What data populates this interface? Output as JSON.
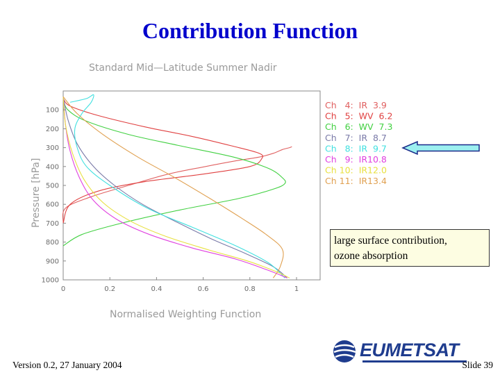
{
  "slide": {
    "title": "Contribution Function",
    "annotation_lines": [
      "large surface contribution,",
      "ozone absorption"
    ],
    "footer_version": "Version 0.2, 27 January 2004",
    "footer_slide": "Slide 39",
    "logo_text": "EUMETSAT",
    "colors": {
      "title": "#0000cc",
      "arrow_fill": "#9cf0f0",
      "arrow_stroke": "#1a2a8a",
      "annotation_bg": "#fdfde2"
    }
  },
  "chart_data": {
    "type": "line",
    "title": "Standard Mid—Latitude Summer Nadir",
    "xlabel": "Normalised Weighting Function",
    "ylabel": "Pressure [hPa]",
    "xlim": [
      0,
      1
    ],
    "ylim": [
      1000,
      0
    ],
    "x_ticks": [
      "0",
      "0.2",
      "0.4",
      "0.6",
      "0.8",
      "1"
    ],
    "y_ticks": [
      "100",
      "200",
      "300",
      "400",
      "500",
      "600",
      "700",
      "800",
      "900",
      "1000"
    ],
    "grid": false,
    "legend_placement": "right",
    "series": [
      {
        "name": "Ch   4:  IR  3.9",
        "color": "#e06060",
        "x": [
          0.0,
          0.01,
          0.12,
          0.28,
          0.45,
          0.61,
          0.74,
          0.84,
          0.9,
          0.94,
          0.97,
          0.98
        ],
        "y": [
          700,
          620,
          560,
          500,
          440,
          400,
          370,
          350,
          330,
          310,
          300,
          295
        ]
      },
      {
        "name": "Ch   5:  WV  6.2",
        "color": "#e04040",
        "x": [
          0.0,
          0.03,
          0.15,
          0.35,
          0.55,
          0.72,
          0.84,
          0.85,
          0.8,
          0.6,
          0.35,
          0.15,
          0.03,
          0.0
        ],
        "y": [
          40,
          80,
          130,
          190,
          240,
          290,
          330,
          360,
          400,
          440,
          480,
          530,
          600,
          700
        ]
      },
      {
        "name": "Ch   6:  WV  7.3",
        "color": "#40d040",
        "x": [
          0.0,
          0.02,
          0.1,
          0.28,
          0.5,
          0.73,
          0.88,
          0.94,
          0.95,
          0.9,
          0.75,
          0.5,
          0.25,
          0.08,
          0.0
        ],
        "y": [
          40,
          100,
          160,
          230,
          290,
          350,
          410,
          460,
          490,
          520,
          570,
          630,
          700,
          760,
          820
        ]
      },
      {
        "name": "Ch   7:  IR  8.7",
        "color": "#7a7aa8",
        "x": [
          0.0,
          0.02,
          0.06,
          0.13,
          0.22,
          0.34,
          0.48,
          0.63,
          0.78,
          0.9,
          0.96
        ],
        "y": [
          30,
          150,
          280,
          400,
          500,
          600,
          690,
          780,
          860,
          930,
          990
        ]
      },
      {
        "name": "Ch   8:  IR  9.7",
        "color": "#40e0e0",
        "x": [
          0.03,
          0.1,
          0.13,
          0.12,
          0.08,
          0.05,
          0.06,
          0.1,
          0.2,
          0.36,
          0.55,
          0.74,
          0.88,
          0.95
        ],
        "y": [
          60,
          40,
          20,
          60,
          120,
          200,
          300,
          400,
          500,
          620,
          720,
          820,
          910,
          990
        ]
      },
      {
        "name": "Ch   9:  IR10.8",
        "color": "#e040e0",
        "x": [
          0.0,
          0.01,
          0.03,
          0.07,
          0.13,
          0.23,
          0.37,
          0.55,
          0.74,
          0.88,
          0.96
        ],
        "y": [
          30,
          180,
          320,
          460,
          580,
          680,
          760,
          830,
          890,
          950,
          990
        ]
      },
      {
        "name": "Ch 10:  IR12.0",
        "color": "#e8e040",
        "x": [
          0.0,
          0.01,
          0.04,
          0.09,
          0.17,
          0.29,
          0.44,
          0.62,
          0.79,
          0.91,
          0.97
        ],
        "y": [
          30,
          180,
          330,
          470,
          590,
          690,
          770,
          840,
          900,
          955,
          990
        ]
      },
      {
        "name": "Ch 11:  IR13.4",
        "color": "#e0a050",
        "x": [
          0.0,
          0.06,
          0.17,
          0.32,
          0.48,
          0.63,
          0.76,
          0.87,
          0.94,
          0.93,
          0.9
        ],
        "y": [
          30,
          120,
          230,
          350,
          460,
          570,
          670,
          760,
          840,
          930,
          990
        ]
      }
    ]
  }
}
